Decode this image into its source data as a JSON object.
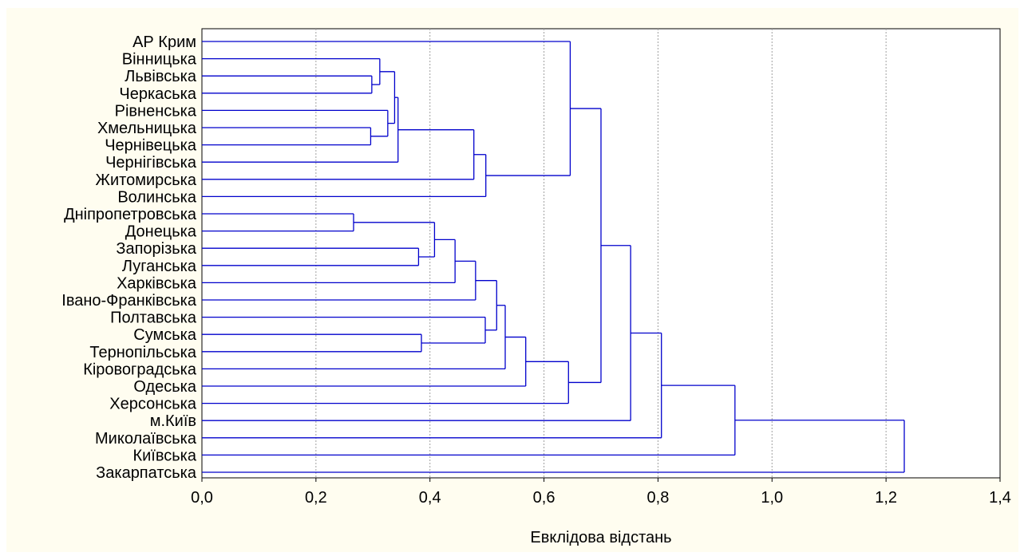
{
  "chart_data": {
    "type": "dendrogram",
    "orientation": "horizontal",
    "xlabel": "Евклідова відстань",
    "xlim": [
      0,
      1.4
    ],
    "x_ticks": [
      0,
      0.2,
      0.4,
      0.6,
      0.8,
      1.0,
      1.2,
      1.4
    ],
    "x_tick_labels": [
      "0,0",
      "0,2",
      "0,4",
      "0,6",
      "0,8",
      "1,0",
      "1,2",
      "1,4"
    ],
    "grid": "vertical-dotted",
    "line_color": "#0000cc",
    "leaves": [
      "АР Крим",
      "Вінницька",
      "Львівська",
      "Черкаська",
      "Рівненська",
      "Хмельницька",
      "Чернівецька",
      "Чернігівська",
      "Житомирська",
      "Волинська",
      "Дніпропетровська",
      "Донецька",
      "Запорізька",
      "Луганська",
      "Харківська",
      "Івано-Франківська",
      "Полтавська",
      "Сумська",
      "Тернопільська",
      "Кіровоградська",
      "Одеська",
      "Херсонська",
      "м.Київ",
      "Миколаївська",
      "Київська",
      "Закарпатська"
    ],
    "merges": [
      {
        "a": "L2",
        "b": "L3",
        "height": 0.298
      },
      {
        "a": "L1",
        "b": "M0",
        "height": 0.312
      },
      {
        "a": "L5",
        "b": "L6",
        "height": 0.296
      },
      {
        "a": "L4",
        "b": "M2",
        "height": 0.326
      },
      {
        "a": "M1",
        "b": "M3",
        "height": 0.338
      },
      {
        "a": "M4",
        "b": "L7",
        "height": 0.344
      },
      {
        "a": "M5",
        "b": "L8",
        "height": 0.477
      },
      {
        "a": "M6",
        "b": "L9",
        "height": 0.498
      },
      {
        "a": "L0",
        "b": "M7",
        "height": 0.646
      },
      {
        "a": "L10",
        "b": "L11",
        "height": 0.266
      },
      {
        "a": "L12",
        "b": "L13",
        "height": 0.38
      },
      {
        "a": "M9",
        "b": "M10",
        "height": 0.408
      },
      {
        "a": "M11",
        "b": "L14",
        "height": 0.444
      },
      {
        "a": "M12",
        "b": "L15",
        "height": 0.48
      },
      {
        "a": "L17",
        "b": "L18",
        "height": 0.385
      },
      {
        "a": "L16",
        "b": "M14",
        "height": 0.497
      },
      {
        "a": "M13",
        "b": "M15",
        "height": 0.517
      },
      {
        "a": "M16",
        "b": "L19",
        "height": 0.532
      },
      {
        "a": "M17",
        "b": "L20",
        "height": 0.568
      },
      {
        "a": "M18",
        "b": "L21",
        "height": 0.643
      },
      {
        "a": "M8",
        "b": "M19",
        "height": 0.7
      },
      {
        "a": "M20",
        "b": "L22",
        "height": 0.752
      },
      {
        "a": "M21",
        "b": "L23",
        "height": 0.806
      },
      {
        "a": "M22",
        "b": "L24",
        "height": 0.935
      },
      {
        "a": "M23",
        "b": "L25",
        "height": 1.232
      }
    ]
  }
}
